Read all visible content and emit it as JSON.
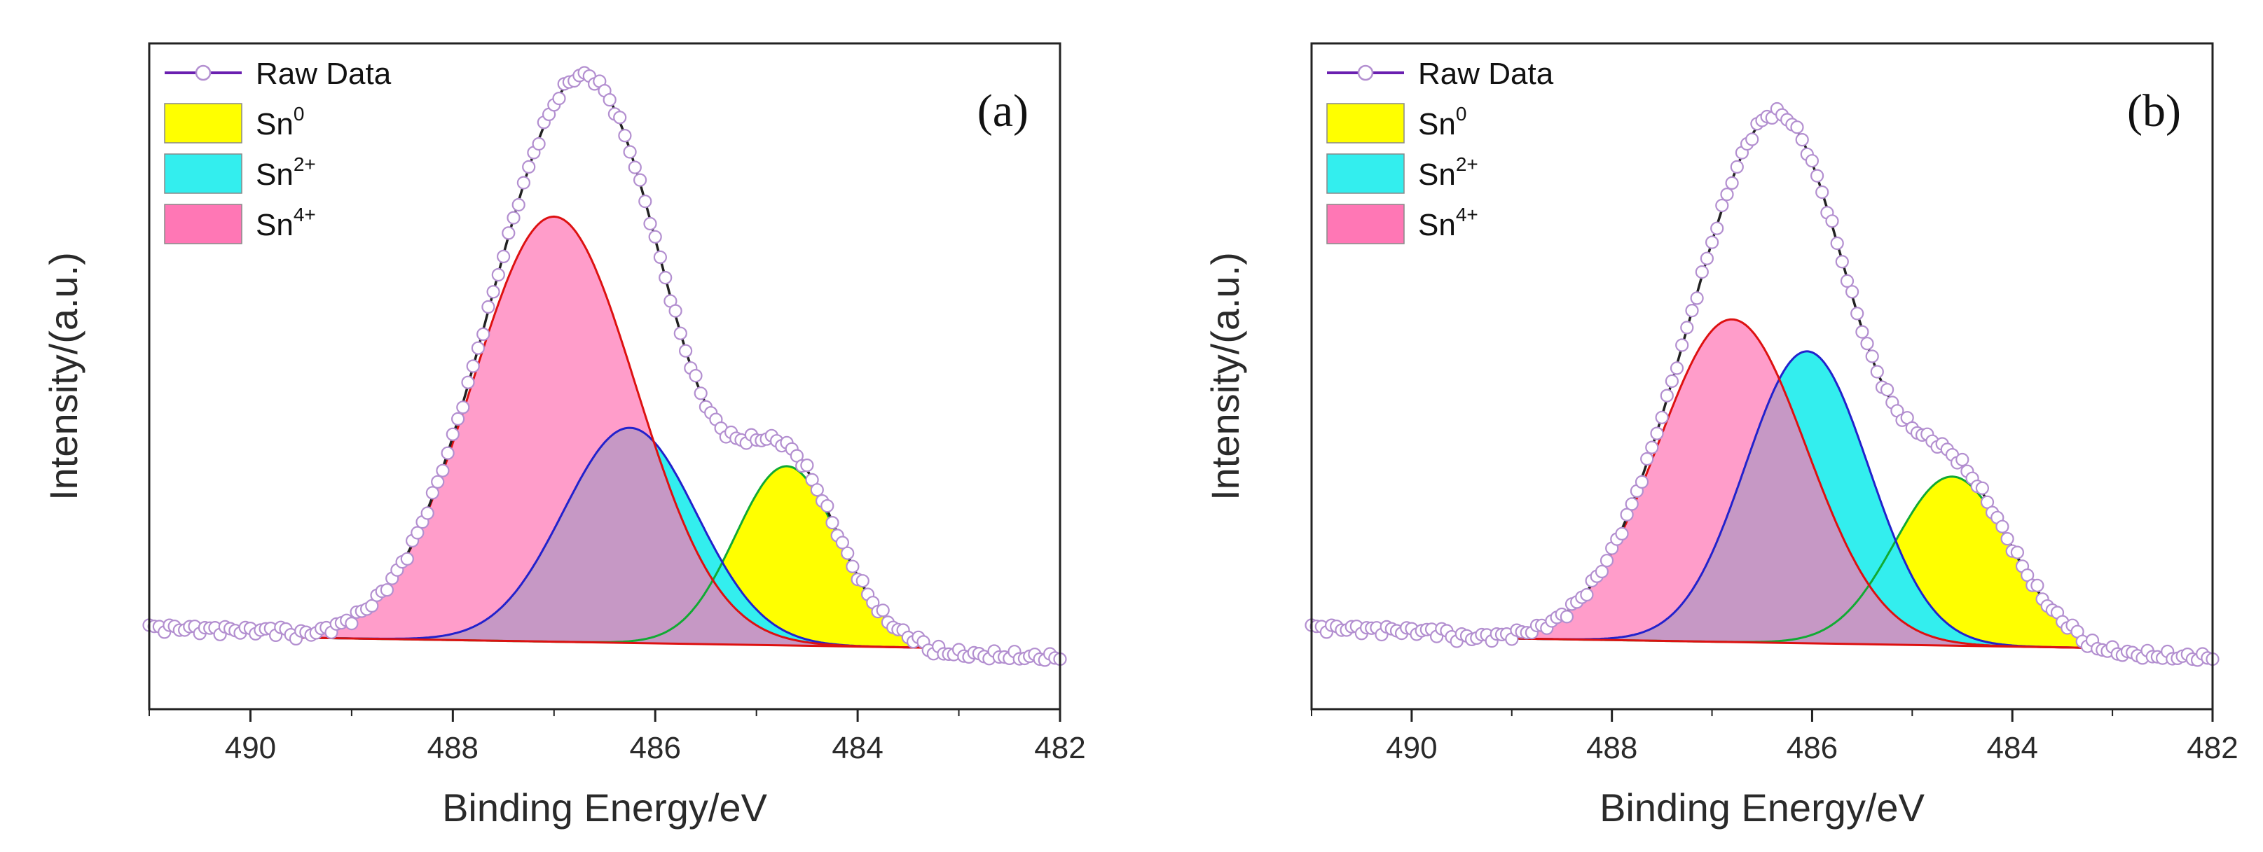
{
  "chart_data": [
    {
      "type": "line",
      "panel_label": "(a)",
      "xlabel": "Binding Energy/eV",
      "ylabel": "Intensity/(a.u.)",
      "xlim": [
        491,
        482
      ],
      "ylim": [
        -0.12,
        1.18
      ],
      "xticks": [
        490,
        488,
        486,
        484,
        482
      ],
      "legend": {
        "position": "top-left",
        "entries": [
          {
            "key": "raw",
            "label": "Raw Data",
            "sup": ""
          },
          {
            "key": "sn0",
            "label": "Sn",
            "sup": "0"
          },
          {
            "key": "sn2",
            "label": "Sn",
            "sup": "2+"
          },
          {
            "key": "sn4",
            "label": "Sn",
            "sup": "4+"
          }
        ]
      },
      "baseline": {
        "x_start": 489.6,
        "y_start": 0.02,
        "x_end": 483.3,
        "y_end": 0.0
      },
      "raw_range": {
        "x_start": 491,
        "y_start": 0.04,
        "x_end": 482,
        "y_end": -0.02
      },
      "components": [
        {
          "name": "Sn0",
          "center": 484.7,
          "amplitude": 0.35,
          "fwhm": 1.2
        },
        {
          "name": "Sn2+",
          "center": 486.25,
          "amplitude": 0.42,
          "fwhm": 1.55
        },
        {
          "name": "Sn4+",
          "center": 487.0,
          "amplitude": 0.83,
          "fwhm": 1.9
        }
      ]
    },
    {
      "type": "line",
      "panel_label": "(b)",
      "xlabel": "Binding Energy/eV",
      "ylabel": "Intensity/(a.u.)",
      "xlim": [
        491,
        482
      ],
      "ylim": [
        -0.12,
        1.18
      ],
      "xticks": [
        490,
        488,
        486,
        484,
        482
      ],
      "legend": {
        "position": "top-left",
        "entries": [
          {
            "key": "raw",
            "label": "Raw Data",
            "sup": ""
          },
          {
            "key": "sn0",
            "label": "Sn",
            "sup": "0"
          },
          {
            "key": "sn2",
            "label": "Sn",
            "sup": "2+"
          },
          {
            "key": "sn4",
            "label": "Sn",
            "sup": "4+"
          }
        ]
      },
      "baseline": {
        "x_start": 489.6,
        "y_start": 0.02,
        "x_end": 483.3,
        "y_end": 0.0
      },
      "raw_range": {
        "x_start": 491,
        "y_start": 0.04,
        "x_end": 482,
        "y_end": -0.02
      },
      "components": [
        {
          "name": "Sn0",
          "center": 484.6,
          "amplitude": 0.33,
          "fwhm": 1.35
        },
        {
          "name": "Sn2+",
          "center": 486.05,
          "amplitude": 0.57,
          "fwhm": 1.45
        },
        {
          "name": "Sn4+",
          "center": 486.8,
          "amplitude": 0.63,
          "fwhm": 1.75
        }
      ]
    }
  ],
  "colors": {
    "raw_marker": "#b38fd0",
    "raw_line": "#6a1fb0",
    "fit_line": "#222222",
    "sn0_fill": "#ffff00",
    "sn2_fill": "#33eeee",
    "sn4_fill": "#ff77b5",
    "sn4_edge": "#dd1111",
    "sn2_edge": "#2222cc",
    "sn0_edge": "#11aa33"
  }
}
